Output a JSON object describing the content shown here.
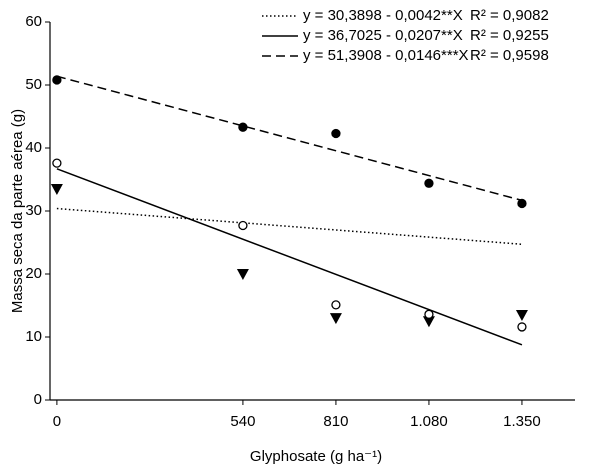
{
  "chart_data": {
    "type": "scatter",
    "x_label": "Glyphosate (g ha⁻¹)",
    "y_label": "Massa seca da parte aérea (g)",
    "x": [
      0,
      540,
      810,
      1080,
      1350
    ],
    "xlim": [
      -20,
      1504
    ],
    "xticks": [
      0,
      540,
      810,
      {
        "value": 1080,
        "label": "1.080"
      },
      {
        "value": 1350,
        "label": "1.350"
      }
    ],
    "ylim": [
      0,
      60
    ],
    "yticks": [
      0,
      10,
      20,
      30,
      40,
      50,
      60
    ],
    "series": [
      {
        "marker": "triangle",
        "line": "dotted",
        "equation": "y = 30,3898 - 0,0042**X",
        "r2": "R² = 0,9082",
        "fit": {
          "intercept": 30.3898,
          "slope": -0.0042
        },
        "values": [
          33.5,
          20,
          13,
          12.5,
          13.5
        ]
      },
      {
        "marker": "open-circle",
        "line": "solid",
        "equation": "y = 36,7025 - 0,0207**X",
        "r2": "R² = 0,9255",
        "fit": {
          "intercept": 36.7025,
          "slope": -0.0207
        },
        "values": [
          37.6,
          27.7,
          15.1,
          13.6,
          11.6
        ]
      },
      {
        "marker": "filled-circle",
        "line": "dashed",
        "equation": "y = 51,3908 - 0,0146***X",
        "r2": "R² = 0,9598",
        "fit": {
          "intercept": 51.3908,
          "slope": -0.0146
        },
        "values": [
          50.8,
          43.3,
          42.3,
          34.4,
          31.2
        ]
      }
    ]
  }
}
